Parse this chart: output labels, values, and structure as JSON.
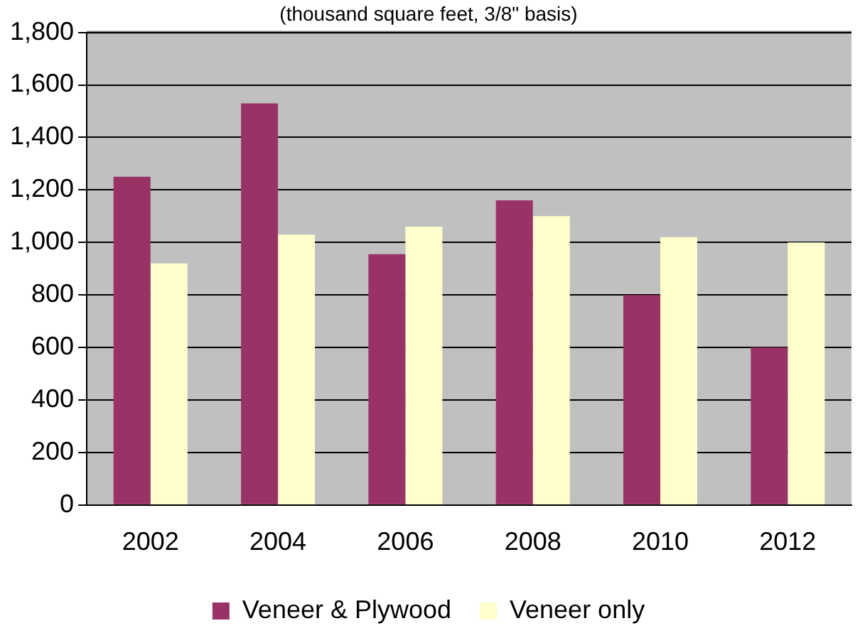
{
  "chart_data": {
    "type": "bar",
    "subtitle": "(thousand square feet, 3/8\" basis)",
    "categories": [
      "2002",
      "2004",
      "2006",
      "2008",
      "2010",
      "2012"
    ],
    "series": [
      {
        "name": "Veneer & Plywood",
        "color": "#993366",
        "values": [
          1250,
          1530,
          955,
          1160,
          800,
          600
        ]
      },
      {
        "name": "Veneer only",
        "color": "#ffffcc",
        "values": [
          920,
          1030,
          1060,
          1100,
          1020,
          1000
        ]
      }
    ],
    "ylim": [
      0,
      1800
    ],
    "yticks": [
      0,
      200,
      400,
      600,
      800,
      {
        "value": 1000,
        "label": "1,000"
      },
      {
        "value": 1200,
        "label": "1,200"
      },
      {
        "value": 1400,
        "label": "1,400"
      },
      {
        "value": 1600,
        "label": "1,600"
      },
      {
        "value": 1800,
        "label": "1,800"
      }
    ],
    "grid": "y",
    "legend": "bottom"
  }
}
